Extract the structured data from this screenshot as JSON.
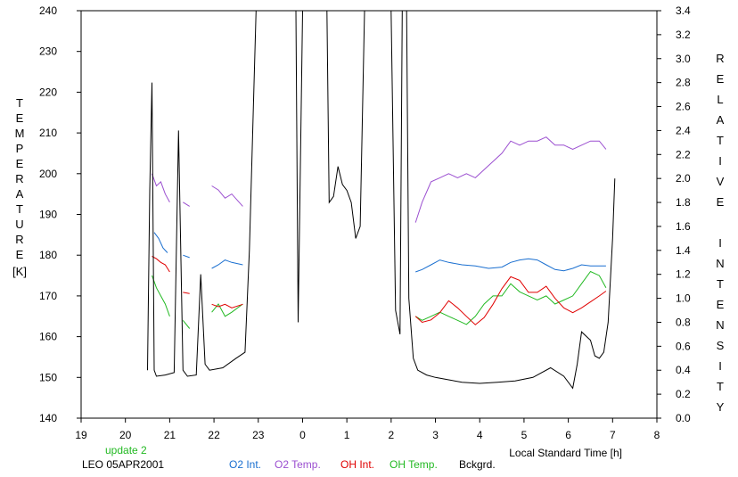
{
  "chart_data": {
    "type": "line",
    "x_range": [
      19,
      8
    ],
    "x_ticks": [
      "19",
      "20",
      "21",
      "22",
      "23",
      "0",
      "1",
      "2",
      "3",
      "4",
      "5",
      "6",
      "7",
      "8"
    ],
    "xlabel": "Local Standard Time [h]",
    "left_axis": {
      "label": "TEMPERATURE",
      "unit": "[K]",
      "range": [
        140,
        240
      ],
      "ticks": [
        "140",
        "150",
        "160",
        "170",
        "180",
        "190",
        "200",
        "210",
        "220",
        "230",
        "240"
      ]
    },
    "right_axis": {
      "label": "RELATIVE INTENSITY",
      "range": [
        0.0,
        3.4
      ],
      "ticks": [
        "0.0",
        "0.2",
        "0.4",
        "0.6",
        "0.8",
        "1.0",
        "1.2",
        "1.4",
        "1.6",
        "1.8",
        "2.0",
        "2.2",
        "2.4",
        "2.6",
        "2.8",
        "3.0",
        "3.2",
        "3.4"
      ]
    },
    "status_text": "update 2",
    "station_text": "LEO 05APR2001",
    "series": [
      {
        "name": "O2 Int.",
        "axis": "right",
        "color": "#1a6fd0",
        "segments": [
          [
            [
              20.65,
              1.55
            ],
            [
              20.75,
              1.5
            ],
            [
              20.85,
              1.42
            ],
            [
              20.95,
              1.38
            ]
          ],
          [
            [
              21.3,
              1.36
            ],
            [
              21.45,
              1.34
            ]
          ],
          [
            [
              21.95,
              1.25
            ],
            [
              22.1,
              1.28
            ],
            [
              22.25,
              1.32
            ],
            [
              22.4,
              1.3
            ],
            [
              22.65,
              1.28
            ]
          ],
          [
            [
              2.55,
              1.22
            ],
            [
              2.7,
              1.24
            ],
            [
              2.9,
              1.28
            ],
            [
              3.1,
              1.32
            ],
            [
              3.3,
              1.3
            ],
            [
              3.6,
              1.28
            ],
            [
              3.9,
              1.27
            ],
            [
              4.2,
              1.25
            ],
            [
              4.5,
              1.26
            ],
            [
              4.7,
              1.3
            ],
            [
              4.9,
              1.32
            ],
            [
              5.1,
              1.33
            ],
            [
              5.3,
              1.32
            ],
            [
              5.5,
              1.28
            ],
            [
              5.7,
              1.24
            ],
            [
              5.9,
              1.23
            ],
            [
              6.1,
              1.25
            ],
            [
              6.3,
              1.28
            ],
            [
              6.5,
              1.27
            ],
            [
              6.7,
              1.27
            ],
            [
              6.85,
              1.27
            ]
          ]
        ]
      },
      {
        "name": "O2 Temp.",
        "axis": "left",
        "color": "#9b4fd0",
        "segments": [
          [
            [
              20.6,
              200
            ],
            [
              20.7,
              197
            ],
            [
              20.8,
              198
            ],
            [
              20.9,
              195
            ],
            [
              21.0,
              193
            ]
          ],
          [
            [
              21.3,
              193
            ],
            [
              21.45,
              192
            ]
          ],
          [
            [
              21.95,
              197
            ],
            [
              22.1,
              196
            ],
            [
              22.25,
              194
            ],
            [
              22.4,
              195
            ],
            [
              22.65,
              192
            ]
          ],
          [
            [
              2.55,
              188
            ],
            [
              2.7,
              193
            ],
            [
              2.9,
              198
            ],
            [
              3.1,
              199
            ],
            [
              3.3,
              200
            ],
            [
              3.5,
              199
            ],
            [
              3.7,
              200
            ],
            [
              3.9,
              199
            ],
            [
              4.1,
              201
            ],
            [
              4.3,
              203
            ],
            [
              4.5,
              205
            ],
            [
              4.7,
              208
            ],
            [
              4.9,
              207
            ],
            [
              5.1,
              208
            ],
            [
              5.3,
              208
            ],
            [
              5.5,
              209
            ],
            [
              5.7,
              207
            ],
            [
              5.9,
              207
            ],
            [
              6.1,
              206
            ],
            [
              6.3,
              207
            ],
            [
              6.5,
              208
            ],
            [
              6.7,
              208
            ],
            [
              6.85,
              206
            ]
          ]
        ]
      },
      {
        "name": "OH Int.",
        "axis": "right",
        "color": "#e00000",
        "segments": [
          [
            [
              20.6,
              1.35
            ],
            [
              20.7,
              1.33
            ],
            [
              20.8,
              1.3
            ],
            [
              20.9,
              1.28
            ],
            [
              21.0,
              1.22
            ]
          ],
          [
            [
              21.3,
              1.05
            ],
            [
              21.45,
              1.04
            ]
          ],
          [
            [
              21.95,
              0.95
            ],
            [
              22.1,
              0.93
            ],
            [
              22.25,
              0.95
            ],
            [
              22.4,
              0.92
            ],
            [
              22.65,
              0.95
            ]
          ],
          [
            [
              2.55,
              0.85
            ],
            [
              2.7,
              0.8
            ],
            [
              2.9,
              0.82
            ],
            [
              3.1,
              0.88
            ],
            [
              3.3,
              0.98
            ],
            [
              3.5,
              0.92
            ],
            [
              3.7,
              0.85
            ],
            [
              3.9,
              0.78
            ],
            [
              4.1,
              0.84
            ],
            [
              4.3,
              0.95
            ],
            [
              4.5,
              1.08
            ],
            [
              4.7,
              1.18
            ],
            [
              4.9,
              1.15
            ],
            [
              5.1,
              1.05
            ],
            [
              5.3,
              1.05
            ],
            [
              5.5,
              1.1
            ],
            [
              5.7,
              1.0
            ],
            [
              5.9,
              0.92
            ],
            [
              6.1,
              0.88
            ],
            [
              6.3,
              0.92
            ],
            [
              6.5,
              0.97
            ],
            [
              6.7,
              1.02
            ],
            [
              6.85,
              1.06
            ]
          ]
        ]
      },
      {
        "name": "OH Temp.",
        "axis": "left",
        "color": "#22b922",
        "segments": [
          [
            [
              20.6,
              175
            ],
            [
              20.7,
              172
            ],
            [
              20.8,
              170
            ],
            [
              20.9,
              168
            ],
            [
              21.0,
              165
            ]
          ],
          [
            [
              21.3,
              164
            ],
            [
              21.45,
              162
            ]
          ],
          [
            [
              21.95,
              166
            ],
            [
              22.1,
              168
            ],
            [
              22.25,
              165
            ],
            [
              22.4,
              166
            ],
            [
              22.65,
              168
            ]
          ],
          [
            [
              2.55,
              165
            ],
            [
              2.7,
              164
            ],
            [
              2.9,
              165
            ],
            [
              3.1,
              166
            ],
            [
              3.3,
              165
            ],
            [
              3.5,
              164
            ],
            [
              3.7,
              163
            ],
            [
              3.9,
              165
            ],
            [
              4.1,
              168
            ],
            [
              4.3,
              170
            ],
            [
              4.5,
              170
            ],
            [
              4.7,
              173
            ],
            [
              4.9,
              171
            ],
            [
              5.1,
              170
            ],
            [
              5.3,
              169
            ],
            [
              5.5,
              170
            ],
            [
              5.7,
              168
            ],
            [
              5.9,
              169
            ],
            [
              6.1,
              170
            ],
            [
              6.3,
              173
            ],
            [
              6.5,
              176
            ],
            [
              6.7,
              175
            ],
            [
              6.85,
              172
            ]
          ]
        ]
      },
      {
        "name": "Bckgrd.",
        "axis": "right",
        "color": "#000000",
        "segments": [
          [
            [
              20.5,
              0.4
            ],
            [
              20.55,
              1.9
            ],
            [
              20.6,
              2.8
            ],
            [
              20.65,
              0.4
            ],
            [
              20.7,
              0.35
            ],
            [
              20.9,
              0.36
            ],
            [
              21.1,
              0.38
            ],
            [
              21.2,
              2.4
            ],
            [
              21.3,
              0.4
            ],
            [
              21.4,
              0.35
            ],
            [
              21.6,
              0.36
            ],
            [
              21.7,
              1.2
            ],
            [
              21.8,
              0.45
            ],
            [
              21.9,
              0.4
            ],
            [
              22.2,
              0.42
            ],
            [
              22.5,
              0.5
            ],
            [
              22.7,
              0.55
            ],
            [
              22.8,
              1.4
            ],
            [
              22.95,
              3.4
            ]
          ],
          [
            [
              23.85,
              3.4
            ],
            [
              23.9,
              0.8
            ],
            [
              24.0,
              3.4
            ]
          ],
          [
            [
              24.55,
              3.4
            ],
            [
              24.6,
              1.8
            ],
            [
              24.7,
              1.85
            ],
            [
              24.8,
              2.1
            ],
            [
              24.9,
              1.95
            ],
            [
              25.0,
              1.9
            ],
            [
              25.1,
              1.8
            ],
            [
              25.2,
              1.5
            ],
            [
              25.3,
              1.6
            ],
            [
              25.4,
              3.4
            ]
          ],
          [
            [
              26.0,
              3.4
            ],
            [
              26.1,
              0.9
            ],
            [
              26.2,
              0.7
            ],
            [
              26.25,
              3.4
            ]
          ],
          [
            [
              26.35,
              3.4
            ],
            [
              26.4,
              1.0
            ],
            [
              26.5,
              0.5
            ],
            [
              26.6,
              0.4
            ],
            [
              26.8,
              0.36
            ],
            [
              27.0,
              0.34
            ],
            [
              27.3,
              0.32
            ],
            [
              27.6,
              0.3
            ],
            [
              28.0,
              0.29
            ],
            [
              28.4,
              0.3
            ],
            [
              28.8,
              0.31
            ],
            [
              29.2,
              0.34
            ],
            [
              29.6,
              0.42
            ],
            [
              29.9,
              0.35
            ],
            [
              30.1,
              0.25
            ],
            [
              30.2,
              0.45
            ],
            [
              30.3,
              0.72
            ],
            [
              30.5,
              0.65
            ],
            [
              30.6,
              0.52
            ],
            [
              30.7,
              0.5
            ],
            [
              30.8,
              0.55
            ],
            [
              30.9,
              0.8
            ],
            [
              31.0,
              1.5
            ],
            [
              31.05,
              2.0
            ]
          ]
        ]
      }
    ]
  }
}
